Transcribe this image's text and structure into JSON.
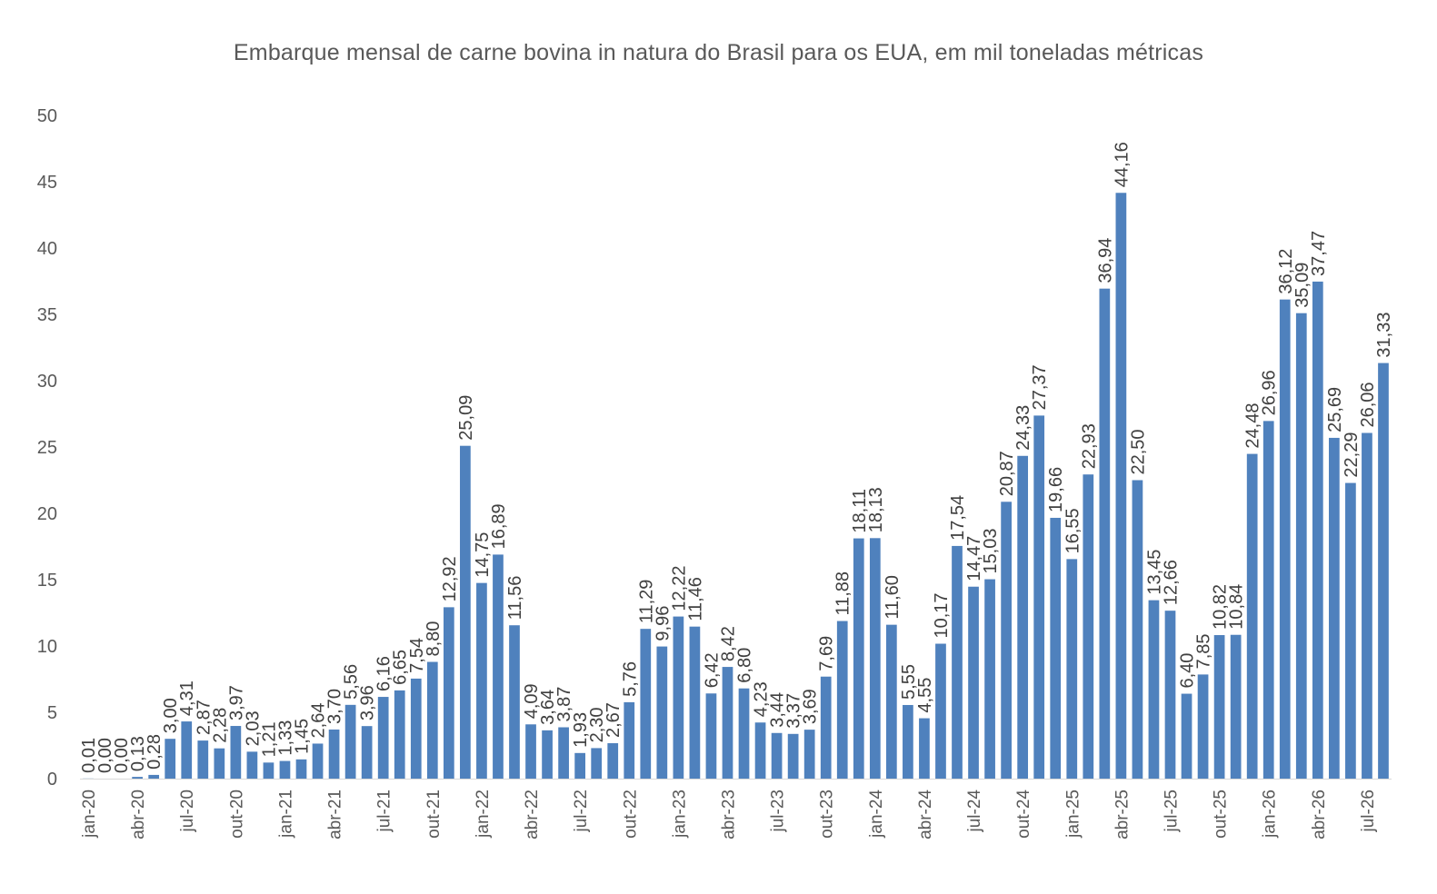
{
  "chart_data": {
    "type": "bar",
    "title": "Embarque mensal de carne bovina in natura do Brasil para os EUA, em mil toneladas métricas",
    "xlabel": "",
    "ylabel": "",
    "ylim": [
      0,
      50
    ],
    "yticks": [
      "0",
      "5",
      "10",
      "15",
      "20",
      "25",
      "30",
      "35",
      "40",
      "45",
      "50"
    ],
    "grid": false,
    "legend": "none",
    "bar_color": "#4F81BD",
    "categories": [
      "jan-20",
      "fev-20",
      "mar-20",
      "abr-20",
      "mai-20",
      "jun-20",
      "jul-20",
      "ago-20",
      "set-20",
      "out-20",
      "nov-20",
      "dez-20",
      "jan-21",
      "fev-21",
      "mar-21",
      "abr-21",
      "mai-21",
      "jun-21",
      "jul-21",
      "ago-21",
      "set-21",
      "out-21",
      "nov-21",
      "dez-21",
      "jan-22",
      "fev-22",
      "mar-22",
      "abr-22",
      "mai-22",
      "jun-22",
      "jul-22",
      "ago-22",
      "set-22",
      "out-22",
      "nov-22",
      "dez-22",
      "jan-23",
      "fev-23",
      "mar-23",
      "abr-23",
      "mai-23",
      "jun-23",
      "jul-23",
      "ago-23",
      "set-23",
      "out-23",
      "nov-23",
      "dez-23",
      "jan-24",
      "fev-24",
      "mar-24",
      "abr-24",
      "mai-24",
      "jun-24",
      "jul-24",
      "ago-24",
      "set-24",
      "out-24",
      "nov-24",
      "dez-24",
      "jan-25",
      "fev-25",
      "mar-25",
      "abr-25",
      "mai-25",
      "jun-25",
      "jul-25",
      "ago-25",
      "set-25",
      "out-25",
      "nov-25",
      "dez-25",
      "jan-26",
      "fev-26",
      "mar-26",
      "abr-26",
      "mai-26",
      "jun-26",
      "jul-26",
      "ago-26"
    ],
    "xtick_labels": [
      "jan-20",
      "abr-20",
      "jul-20",
      "out-20",
      "jan-21",
      "abr-21",
      "jul-21",
      "out-21",
      "jan-22",
      "abr-22",
      "jul-22",
      "out-22",
      "jan-23",
      "abr-23",
      "jul-23",
      "out-23",
      "jan-24",
      "abr-24",
      "jul-24",
      "out-24",
      "jan-25",
      "abr-25",
      "jul-25",
      "out-25",
      "jan-26",
      "abr-26",
      "jul-26"
    ],
    "values": [
      0.01,
      0.0,
      0.0,
      0.13,
      0.28,
      3.0,
      4.31,
      2.87,
      2.28,
      3.97,
      2.03,
      1.21,
      1.33,
      1.45,
      2.64,
      3.7,
      5.56,
      3.96,
      6.16,
      6.65,
      7.54,
      8.8,
      12.92,
      25.09,
      14.75,
      16.89,
      11.56,
      4.09,
      3.64,
      3.87,
      1.93,
      2.3,
      2.67,
      5.76,
      11.29,
      9.96,
      12.22,
      11.46,
      6.42,
      8.42,
      6.8,
      4.23,
      3.44,
      3.37,
      3.69,
      7.69,
      11.88,
      18.11,
      18.13,
      11.6,
      5.55,
      4.55,
      10.17,
      17.54,
      14.47,
      15.03,
      20.87,
      24.33,
      27.37,
      19.66,
      16.55,
      22.93,
      36.94,
      44.16,
      22.5,
      13.45,
      12.66,
      6.4,
      7.85,
      10.82,
      10.84,
      24.48,
      26.96,
      36.12,
      35.09,
      37.47,
      25.69,
      22.29,
      26.06,
      31.33
    ],
    "data_labels": [
      "0,01",
      "0,00",
      "0,00",
      "0,13",
      "0,28",
      "3,00",
      "4,31",
      "2,87",
      "2,28",
      "3,97",
      "2,03",
      "1,21",
      "1,33",
      "1,45",
      "2,64",
      "3,70",
      "5,56",
      "3,96",
      "6,16",
      "6,65",
      "7,54",
      "8,80",
      "12,92",
      "25,09",
      "14,75",
      "16,89",
      "11,56",
      "4,09",
      "3,64",
      "3,87",
      "1,93",
      "2,30",
      "2,67",
      "5,76",
      "11,29",
      "9,96",
      "12,22",
      "11,46",
      "6,42",
      "8,42",
      "6,80",
      "4,23",
      "3,44",
      "3,37",
      "3,69",
      "7,69",
      "11,88",
      "18,11",
      "18,13",
      "11,60",
      "5,55",
      "4,55",
      "10,17",
      "17,54",
      "14,47",
      "15,03",
      "20,87",
      "24,33",
      "27,37",
      "19,66",
      "16,55",
      "22,93",
      "36,94",
      "44,16",
      "22,50",
      "13,45",
      "12,66",
      "6,40",
      "7,85",
      "10,82",
      "10,84",
      "24,48",
      "26,96",
      "36,12",
      "35,09",
      "37,47",
      "25,69",
      "22,29",
      "26,06",
      "31,33"
    ]
  }
}
